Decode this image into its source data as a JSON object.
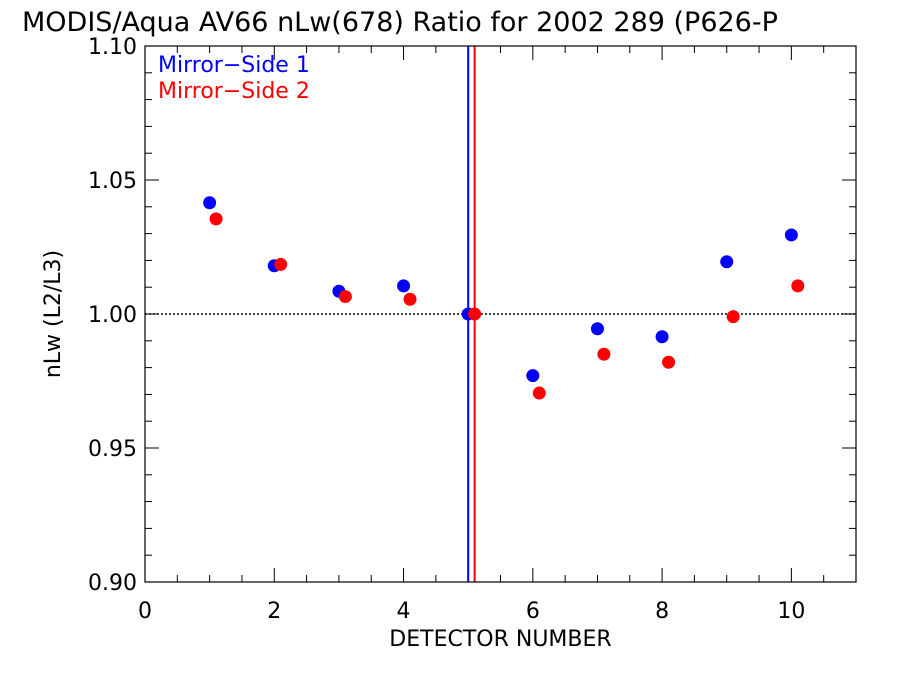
{
  "chart_data": {
    "type": "scatter",
    "title": "MODIS/Aqua AV66 nLw(678) Ratio for 2002 289 (P626-P",
    "xlabel": "DETECTOR NUMBER",
    "ylabel": "nLw (L2/L3)",
    "xlim": [
      0,
      11
    ],
    "ylim": [
      0.9,
      1.1
    ],
    "x_ticks": [
      0,
      2,
      4,
      6,
      8,
      10
    ],
    "x_tick_labels": [
      "0",
      "2",
      "4",
      "6",
      "8",
      "10"
    ],
    "y_ticks": [
      0.9,
      0.95,
      1.0,
      1.05,
      1.1
    ],
    "y_tick_labels": [
      "0.90",
      "0.95",
      "1.00",
      "1.05",
      "1.10"
    ],
    "x_minor_step": 0.5,
    "y_minor_step": 0.01,
    "grid": false,
    "legend_position": "top-left",
    "reference_line": {
      "y": 1.0,
      "style": "dotted",
      "color": "#000000"
    },
    "vertical_lines": [
      {
        "x": 5.0,
        "color": "#0000ff"
      },
      {
        "x": 5.1,
        "color": "#ff0000"
      }
    ],
    "series": [
      {
        "name": "Mirror−Side 1",
        "color": "#0000ff",
        "x": [
          1,
          2,
          3,
          4,
          5,
          6,
          7,
          8,
          9,
          10
        ],
        "y": [
          1.0415,
          1.018,
          1.0085,
          1.0105,
          1.0,
          0.977,
          0.9945,
          0.9915,
          1.0195,
          1.0295
        ]
      },
      {
        "name": "Mirror−Side 2",
        "color": "#ff0000",
        "x": [
          1.1,
          2.1,
          3.1,
          4.1,
          5.1,
          6.1,
          7.1,
          8.1,
          9.1,
          10.1
        ],
        "y": [
          1.0355,
          1.0185,
          1.0065,
          1.0055,
          1.0,
          0.9705,
          0.985,
          0.982,
          0.999,
          1.0105
        ]
      }
    ]
  }
}
